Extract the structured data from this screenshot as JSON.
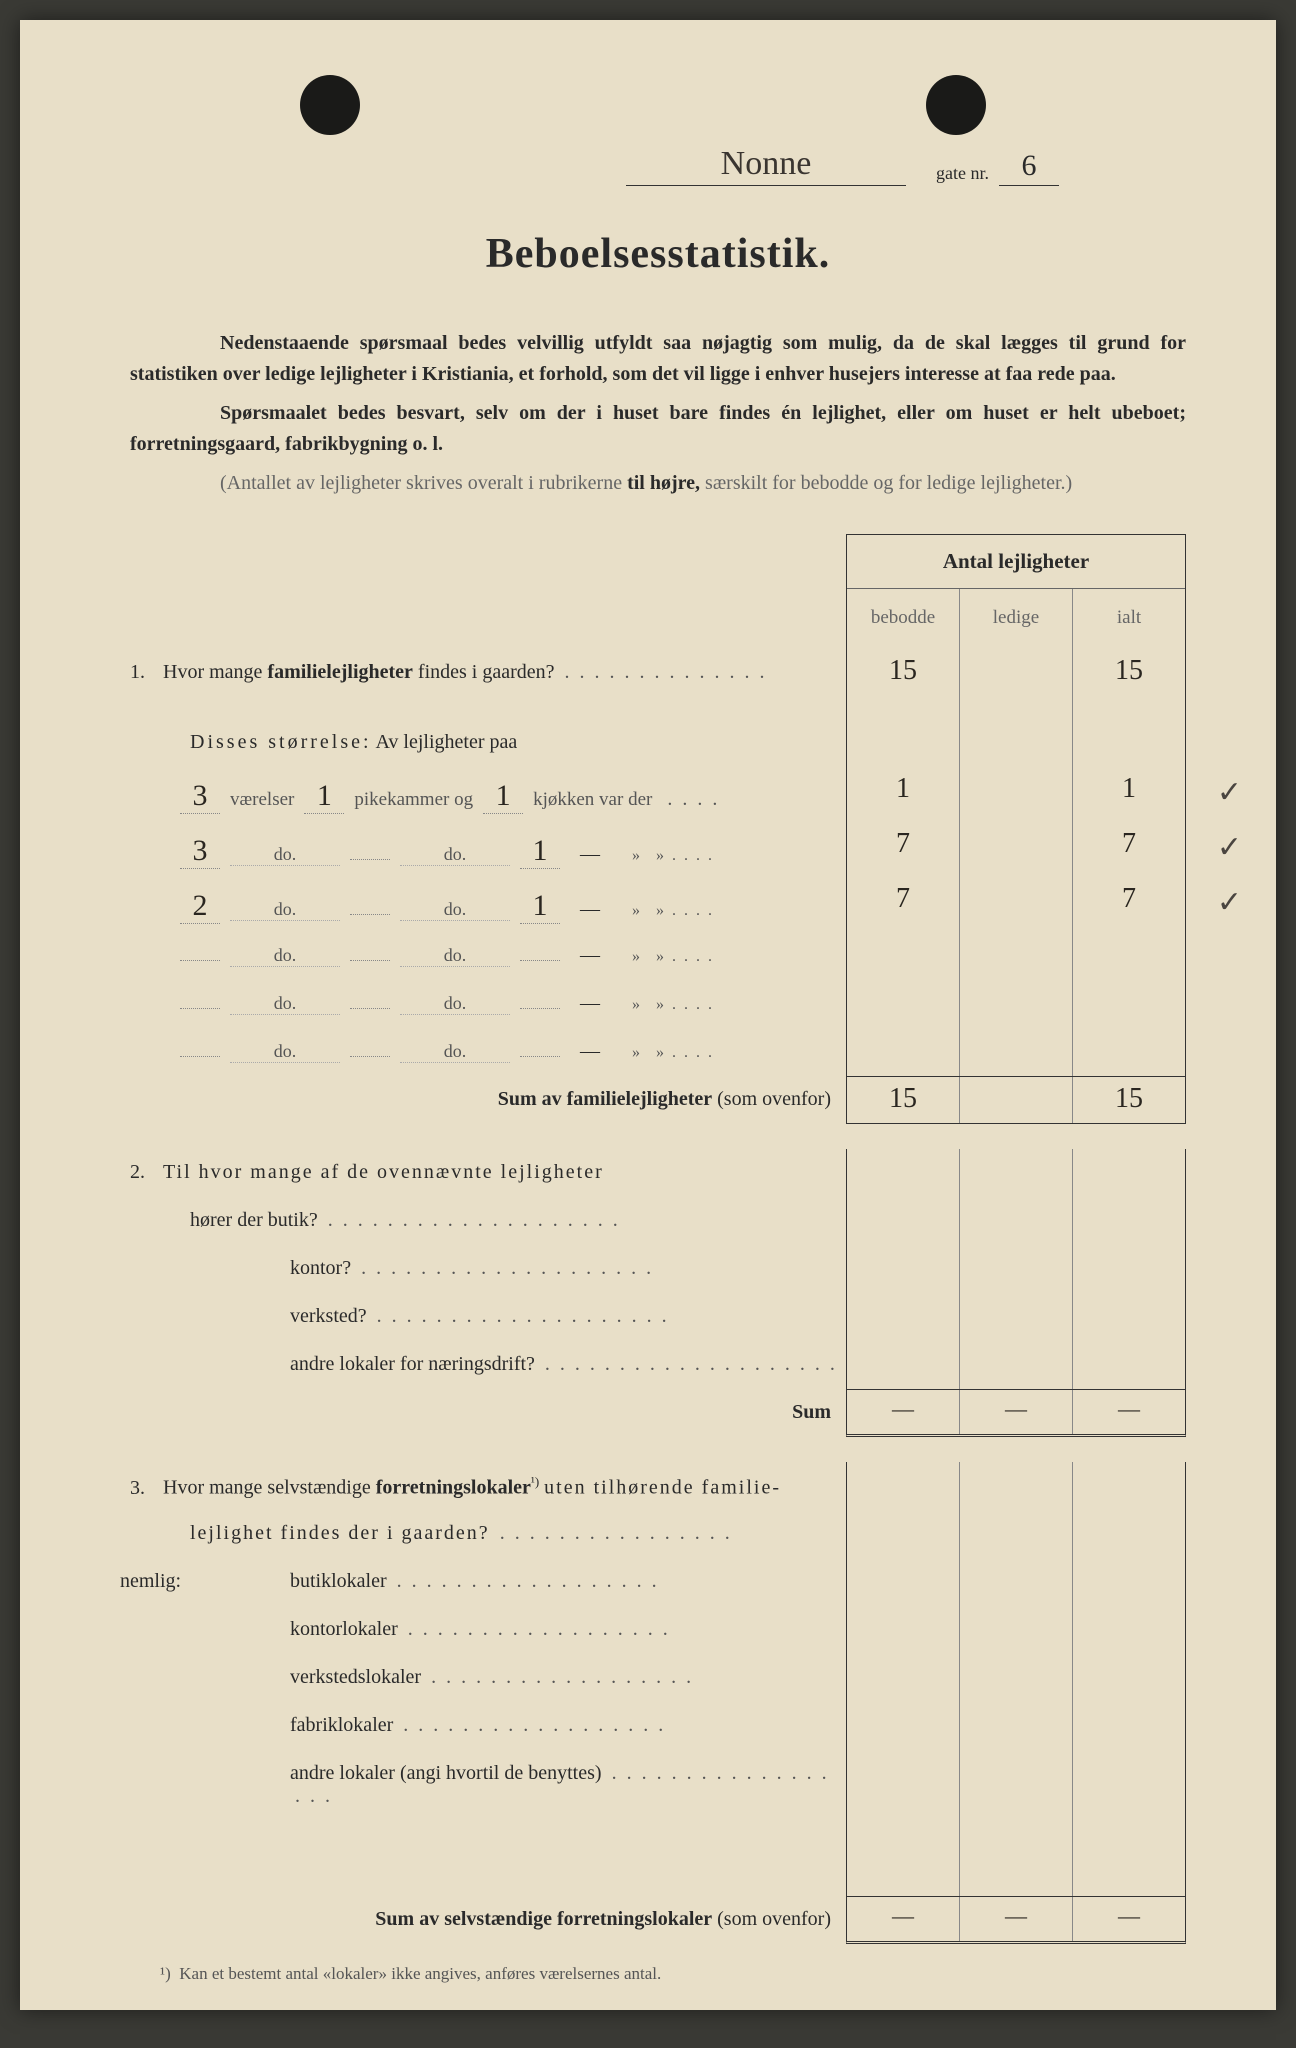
{
  "header": {
    "street_name": "Nonne",
    "gate_label": "gate nr.",
    "gate_nr": "6"
  },
  "title": "Beboelsesstatistik.",
  "intro": {
    "p1_a": "Nedenstaaende spørsmaal bedes velvillig utfyldt saa nøjagtig som mulig, da de skal lægges til grund for statistiken over ledige lejligheter i Kristiania, et forhold, som det vil ligge i enhver husejers interesse at faa rede paa.",
    "p2_a": "Spørsmaalet bedes besvart, selv om der i huset bare findes én lejlighet, eller om huset er helt ubeboet; forretningsgaard, fabrikbygning o. l.",
    "p3_a": "(Antallet av lejligheter skrives overalt i rubrikerne ",
    "p3_b": "til højre,",
    "p3_c": " særskilt for bebodde og for ledige lejligheter.)"
  },
  "table_header": {
    "group": "Antal lejligheter",
    "c1": "bebodde",
    "c2": "ledige",
    "c3": "ialt"
  },
  "q1": {
    "num": "1.",
    "text_a": "Hvor mange ",
    "text_b": "familielejligheter",
    "text_c": " findes i gaarden?",
    "bebodde": "15",
    "ledige": "",
    "ialt": "15",
    "sub_label_a": "Disses ",
    "sub_label_b": "størrelse:",
    "sub_label_c": "  Av lejligheter paa",
    "size_rows": [
      {
        "v": "3",
        "p": "1",
        "k": "1",
        "labels": [
          "værelser",
          "pikekammer og",
          "kjøkken var der"
        ],
        "b": "1",
        "l": "",
        "i": "1"
      },
      {
        "v": "3",
        "p": "",
        "k": "1",
        "labels": [
          "do.",
          "do.",
          "—"
        ],
        "b": "7",
        "l": "",
        "i": "7"
      },
      {
        "v": "2",
        "p": "",
        "k": "1",
        "labels": [
          "do.",
          "do.",
          "—"
        ],
        "b": "7",
        "l": "",
        "i": "7"
      },
      {
        "v": "",
        "p": "",
        "k": "",
        "labels": [
          "do.",
          "do.",
          "—"
        ],
        "b": "",
        "l": "",
        "i": ""
      },
      {
        "v": "",
        "p": "",
        "k": "",
        "labels": [
          "do.",
          "do.",
          "—"
        ],
        "b": "",
        "l": "",
        "i": ""
      },
      {
        "v": "",
        "p": "",
        "k": "",
        "labels": [
          "do.",
          "do.",
          "—"
        ],
        "b": "",
        "l": "",
        "i": ""
      }
    ],
    "sum_label": "Sum av familielejligheter",
    "sum_paren": " (som ovenfor)",
    "sum_b": "15",
    "sum_l": "",
    "sum_i": "15"
  },
  "q2": {
    "num": "2.",
    "text": "Til hvor mange af de ovennævnte lejligheter",
    "items": [
      {
        "label": "hører der butik?",
        "b": "",
        "l": "",
        "i": ""
      },
      {
        "label": "kontor?",
        "b": "",
        "l": "",
        "i": ""
      },
      {
        "label": "verksted?",
        "b": "",
        "l": "",
        "i": ""
      },
      {
        "label": "andre lokaler for næringsdrift?",
        "b": "",
        "l": "",
        "i": ""
      }
    ],
    "sum_label": "Sum",
    "sum_b": "—",
    "sum_l": "—",
    "sum_i": "—"
  },
  "q3": {
    "num": "3.",
    "text_a": "Hvor mange selvstændige ",
    "text_b": "forretningslokaler",
    "text_c": " uten tilhørende familie-",
    "text_d": "lejlighet findes der i gaarden?",
    "nemlig": "nemlig:",
    "items": [
      {
        "label": "butiklokaler",
        "b": "",
        "l": "",
        "i": ""
      },
      {
        "label": "kontorlokaler",
        "b": "",
        "l": "",
        "i": ""
      },
      {
        "label": "verkstedslokaler",
        "b": "",
        "l": "",
        "i": ""
      },
      {
        "label": "fabriklokaler",
        "b": "",
        "l": "",
        "i": ""
      },
      {
        "label": "andre lokaler (angi hvortil de benyttes)",
        "b": "",
        "l": "",
        "i": ""
      }
    ],
    "sum_label": "Sum av selvstændige forretningslokaler",
    "sum_paren": " (som ovenfor)",
    "sum_b": "—",
    "sum_l": "—",
    "sum_i": "—"
  },
  "footnote": {
    "marker": "¹)",
    "text": "Kan et bestemt antal «lokaler» ikke angives, anføres værelsernes antal."
  },
  "checkmarks": [
    "✓",
    "✓",
    "✓"
  ]
}
